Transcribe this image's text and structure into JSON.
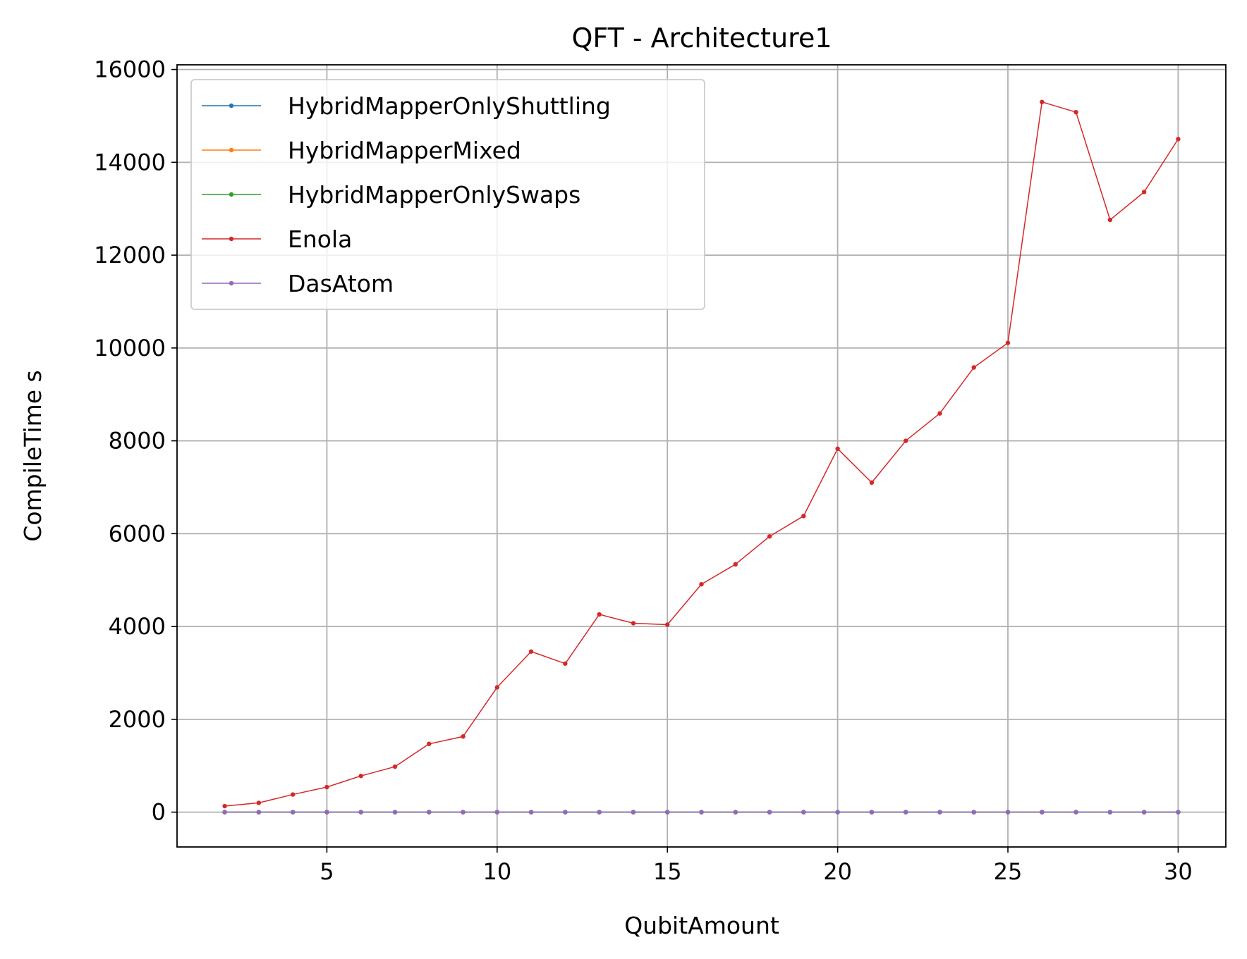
{
  "chart_data": {
    "type": "line",
    "title": "QFT - Architecture1",
    "xlabel": "QubitAmount",
    "ylabel": "CompileTime s",
    "xlim": [
      0.6,
      31.4
    ],
    "ylim": [
      -750,
      16100
    ],
    "xticks": [
      5,
      10,
      15,
      20,
      25,
      30
    ],
    "yticks": [
      0,
      2000,
      4000,
      6000,
      8000,
      10000,
      12000,
      14000,
      16000
    ],
    "grid": true,
    "legend_position": "top-left",
    "x": [
      2,
      3,
      4,
      5,
      6,
      7,
      8,
      9,
      10,
      11,
      12,
      13,
      14,
      15,
      16,
      17,
      18,
      19,
      20,
      21,
      22,
      23,
      24,
      25,
      26,
      27,
      28,
      29,
      30
    ],
    "series": [
      {
        "name": "HybridMapperOnlyShuttling",
        "color": "#1f77b4",
        "values": [
          0,
          0,
          0,
          0,
          0,
          0,
          0,
          0,
          0,
          0,
          0,
          0,
          0,
          0,
          0,
          0,
          0,
          0,
          0,
          0,
          0,
          0,
          0,
          0,
          0,
          0,
          0,
          0,
          0
        ]
      },
      {
        "name": "HybridMapperMixed",
        "color": "#ff7f0e",
        "values": [
          0,
          0,
          0,
          0,
          0,
          0,
          0,
          0,
          0,
          0,
          0,
          0,
          0,
          0,
          0,
          0,
          0,
          0,
          0,
          0,
          0,
          0,
          0,
          0,
          0,
          0,
          0,
          0,
          0
        ]
      },
      {
        "name": "HybridMapperOnlySwaps",
        "color": "#2ca02c",
        "values": [
          0,
          0,
          0,
          0,
          0,
          0,
          0,
          0,
          0,
          0,
          0,
          0,
          0,
          0,
          0,
          0,
          0,
          0,
          0,
          0,
          0,
          0,
          0,
          0,
          0,
          0,
          0,
          0,
          0
        ]
      },
      {
        "name": "Enola",
        "color": "#d62728",
        "values": [
          130,
          200,
          380,
          540,
          780,
          980,
          1470,
          1630,
          2690,
          3460,
          3200,
          4260,
          4070,
          4040,
          4910,
          5340,
          5940,
          6380,
          7830,
          7100,
          8000,
          8590,
          9580,
          10110,
          15300,
          15080,
          12760,
          13360,
          14500
        ]
      },
      {
        "name": "DasAtom",
        "color": "#9467bd",
        "values": [
          2,
          2,
          2,
          2,
          2,
          2,
          2,
          2,
          2,
          2,
          2,
          2,
          2,
          2,
          2,
          2,
          2,
          2,
          2,
          2,
          2,
          2,
          2,
          2,
          2,
          2,
          2,
          2,
          2
        ]
      }
    ]
  }
}
